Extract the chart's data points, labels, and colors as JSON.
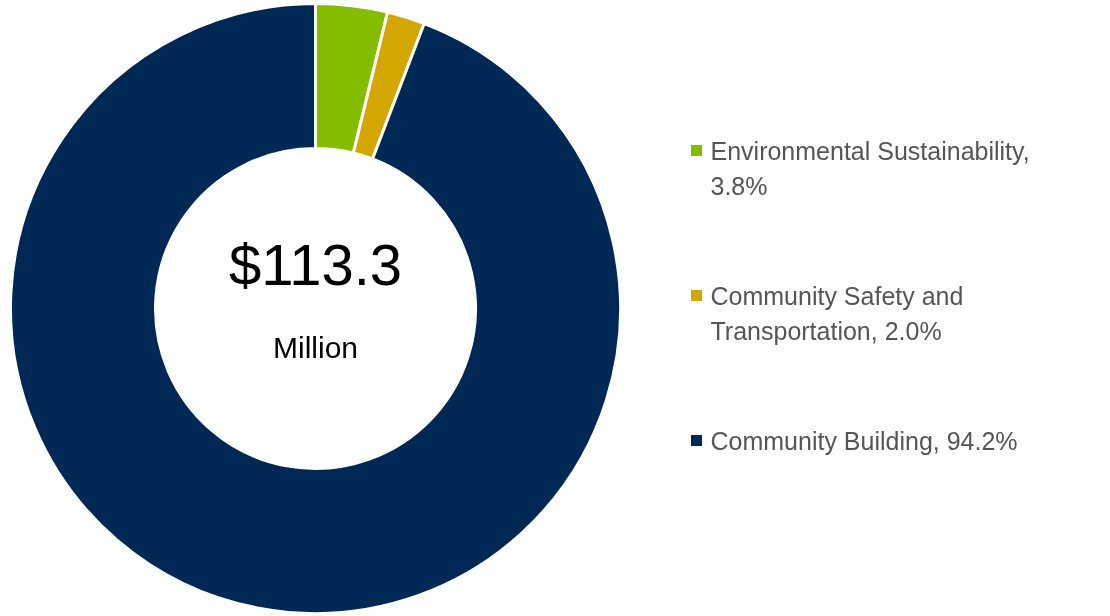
{
  "chart_data": {
    "type": "donut",
    "categories": [
      "Environmental Sustainability, 3.8%",
      "Community Safety and Transportation, 2.0%",
      "Community Building, 94.2%"
    ],
    "values": [
      3.8,
      2.0,
      94.2
    ],
    "colors": [
      "#84bd00",
      "#d4a700",
      "#002855"
    ],
    "annotations": [
      "$113.3",
      "Million"
    ],
    "legend": "right"
  }
}
